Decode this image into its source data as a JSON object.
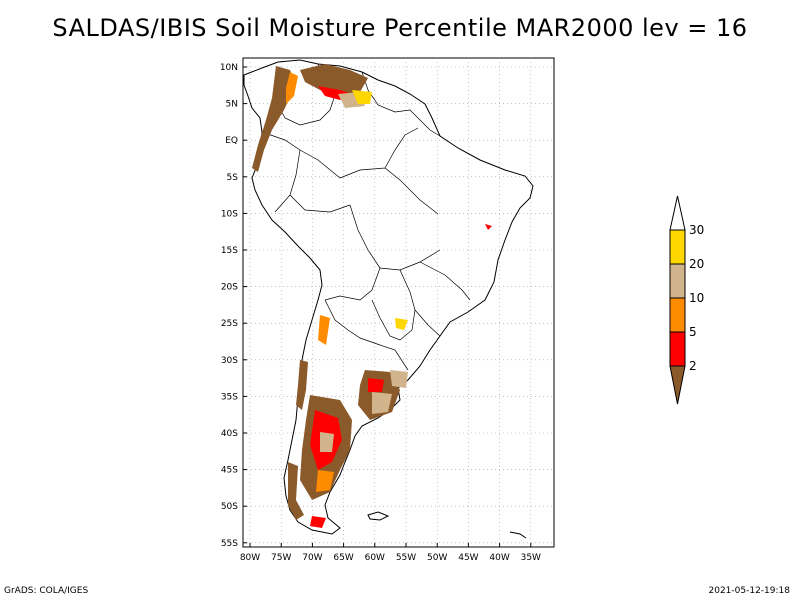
{
  "title": "SALDAS/IBIS Soil Moisture Percentile MAR2000 lev = 16",
  "footer": {
    "left": "GrADS: COLA/IGES",
    "right": "2021-05-12-19:18"
  },
  "map": {
    "lon_labels": [
      "80W",
      "75W",
      "70W",
      "65W",
      "60W",
      "55W",
      "50W",
      "45W",
      "40W",
      "35W"
    ],
    "lat_labels": [
      "10N",
      "5N",
      "EQ",
      "5S",
      "10S",
      "15S",
      "20S",
      "25S",
      "30S",
      "35S",
      "40S",
      "45S",
      "50S",
      "55S"
    ]
  },
  "legend": {
    "labels": [
      "2",
      "5",
      "10",
      "20",
      "30"
    ],
    "colors": [
      "#8b5a2b",
      "#ff0000",
      "#ff8c00",
      "#d2b48c",
      "#ffd700"
    ]
  },
  "colors": {
    "brown": "#8b5a2b",
    "red": "#ff0000",
    "orange": "#ff8c00",
    "tan": "#d2b48c",
    "gold": "#ffd700",
    "grid": "#a0a0a0"
  }
}
